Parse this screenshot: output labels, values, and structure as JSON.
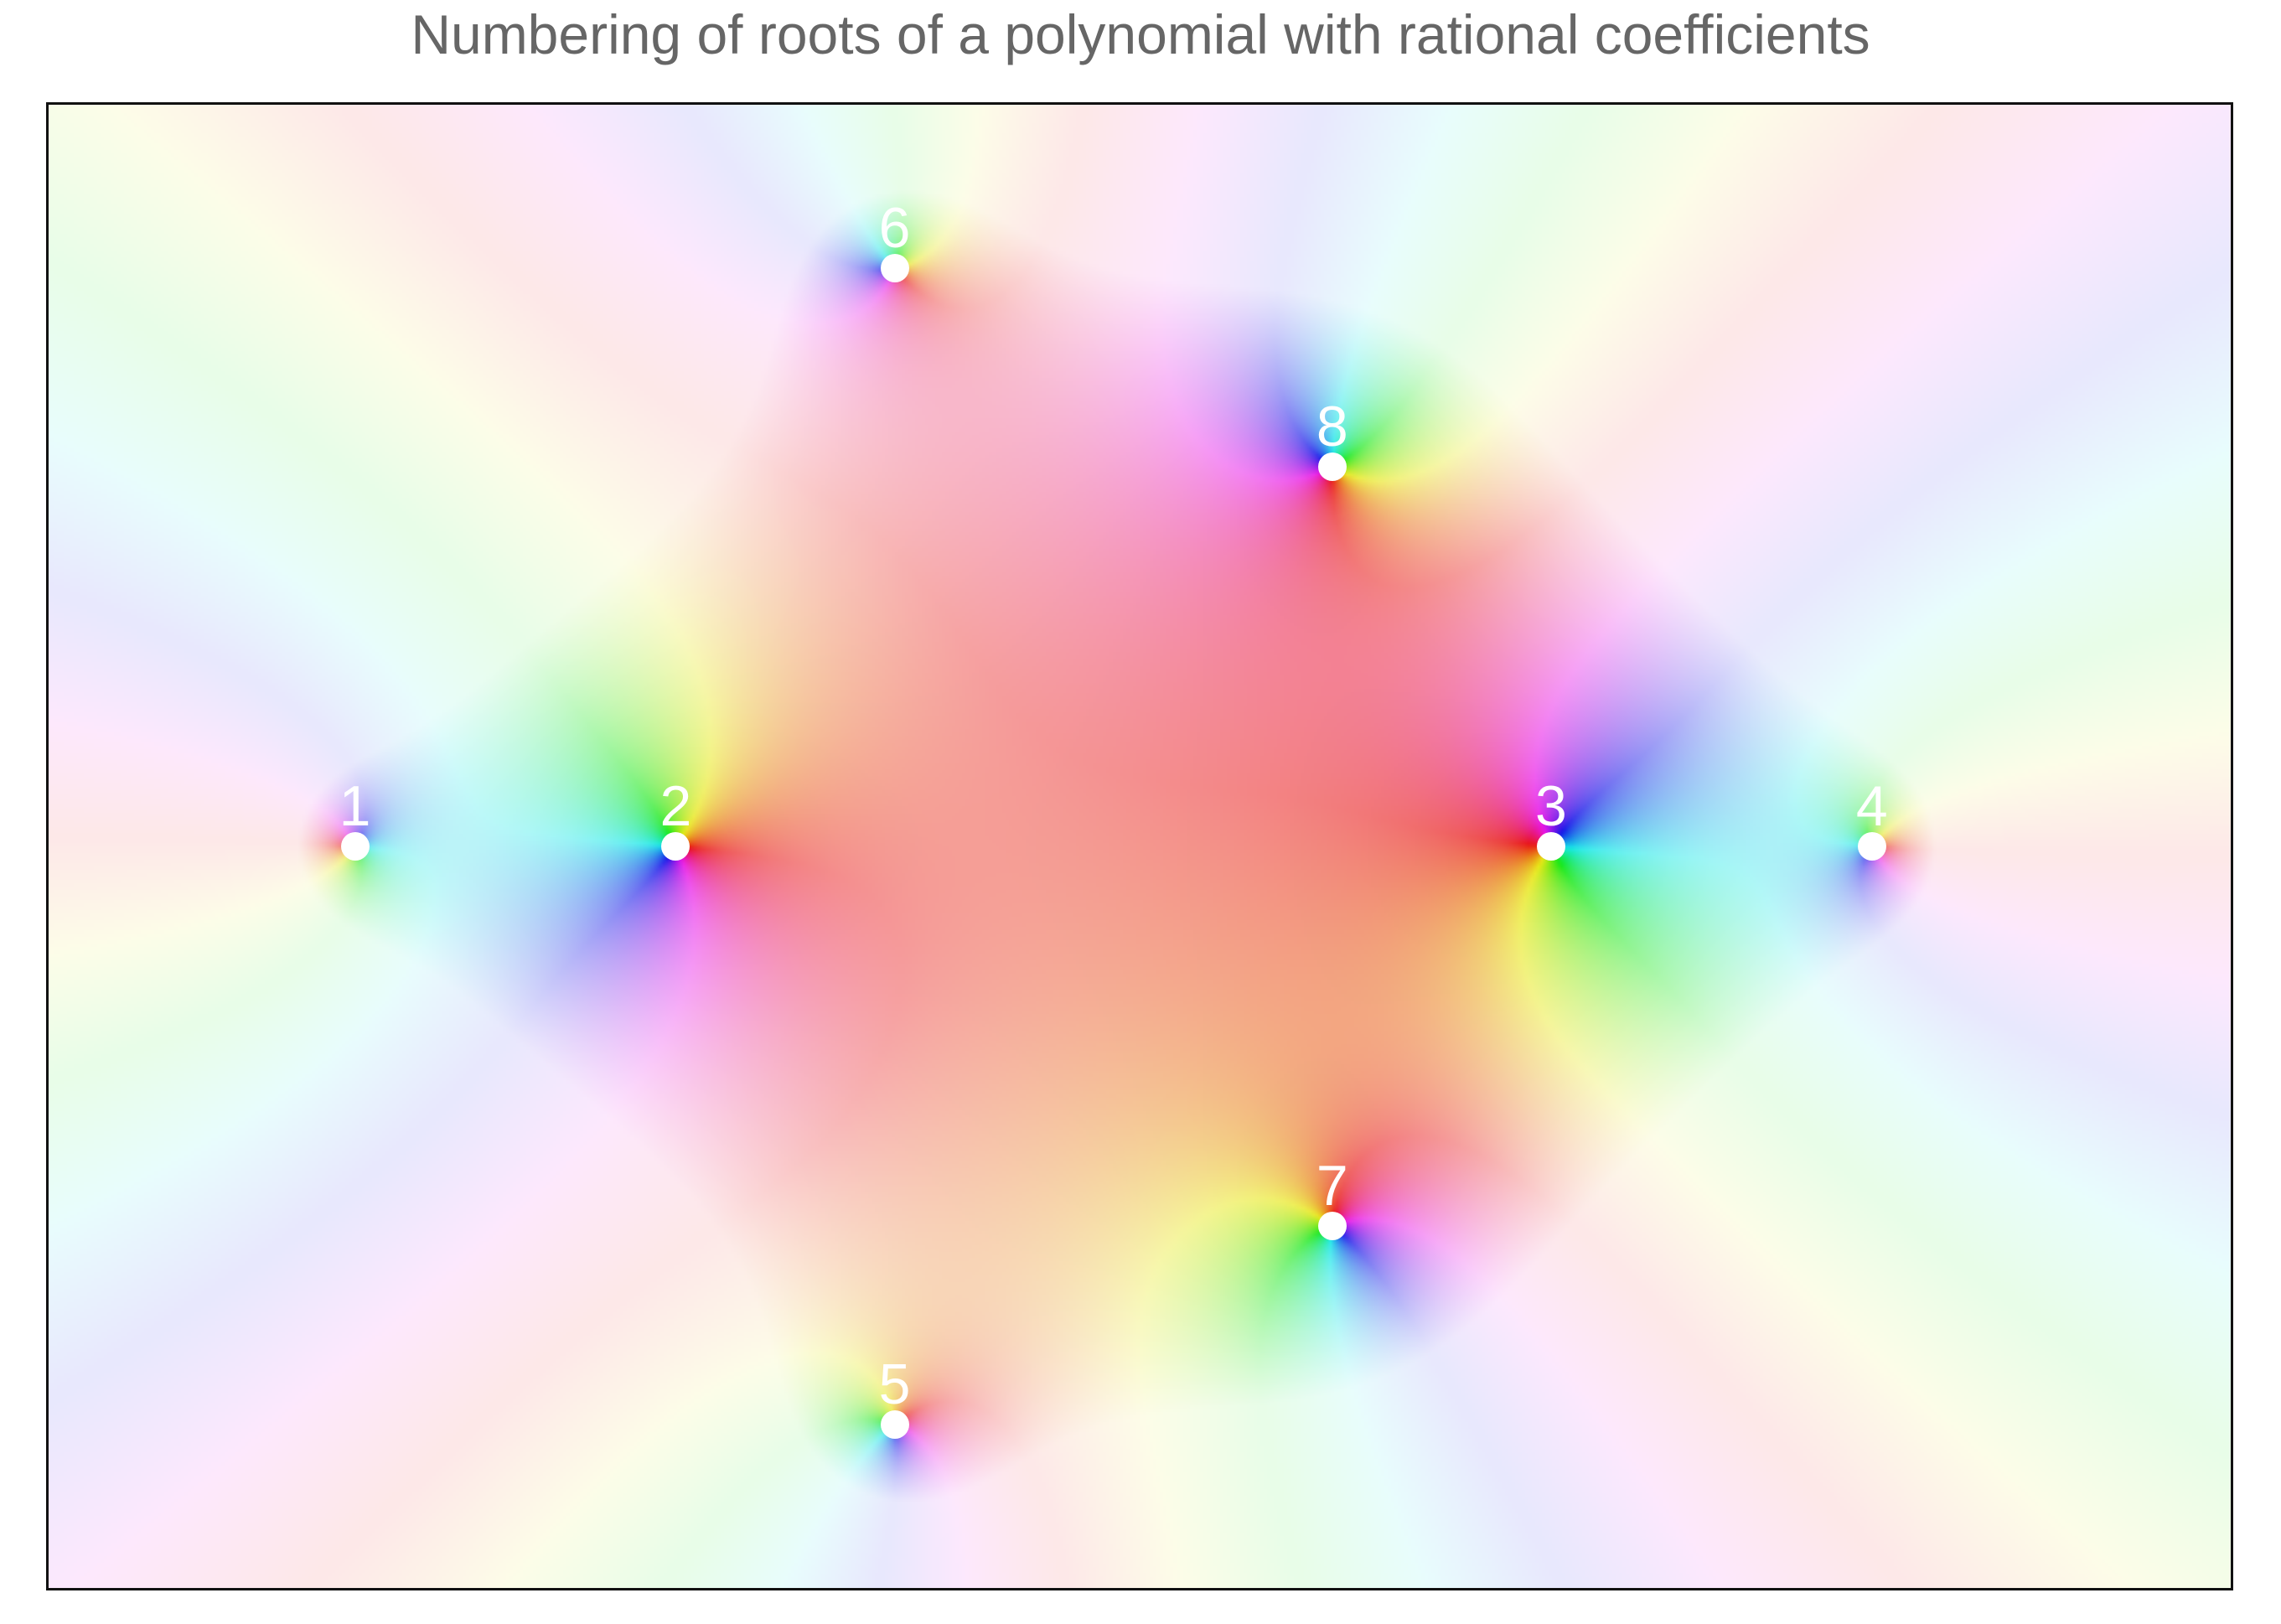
{
  "title": "Numbering of roots of a polynomial with rational coefficients",
  "plot": {
    "coloring": "domain coloring of argument (hue) with brightness fading toward corners",
    "root_color": "#ffffff",
    "frame_color": "#111111",
    "background_center_color": "#e84a3b"
  },
  "roots": [
    {
      "label": "1",
      "re": -2.1,
      "im": 0.0
    },
    {
      "label": "2",
      "re": -1.0,
      "im": 0.0
    },
    {
      "label": "3",
      "re": 2.0,
      "im": 0.0
    },
    {
      "label": "4",
      "re": 3.1,
      "im": 0.0
    },
    {
      "label": "5",
      "re": -0.25,
      "im": -1.98
    },
    {
      "label": "6",
      "re": -0.25,
      "im": 1.98
    },
    {
      "label": "7",
      "re": 1.25,
      "im": -1.3
    },
    {
      "label": "8",
      "re": 1.25,
      "im": 1.3
    }
  ]
}
